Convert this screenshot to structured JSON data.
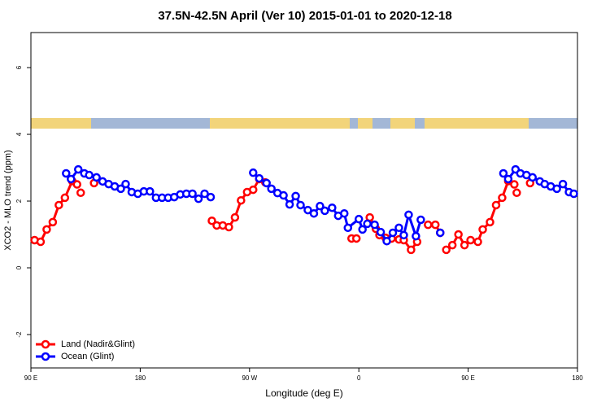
{
  "chart_data": {
    "type": "line",
    "title": "37.5N-42.5N April (Ver 10)   2015-01-01 to 2020-12-18",
    "x_label": "Longitude (deg E)",
    "y_label": "XCO2 - MLO trend (ppm)",
    "xlim": [
      90,
      540
    ],
    "ylim": [
      -3,
      7.05
    ],
    "xticks": [
      {
        "value": 90,
        "label": "90 E"
      },
      180,
      {
        "value": 270,
        "label": "90 W"
      },
      {
        "value": 360,
        "label": "0"
      },
      {
        "value": 450,
        "label": "90 E"
      },
      {
        "value": 540,
        "label": "180"
      }
    ],
    "yticks": [
      -2,
      0,
      2,
      4,
      6
    ],
    "grid": false,
    "legend": "bottom-left",
    "series": [
      {
        "name": "Land (Nadir&Glint)",
        "color": "#ff0000",
        "x": [
          93,
          98,
          103,
          108,
          113,
          118,
          124,
          128,
          null,
          131,
          null,
          142,
          null,
          239,
          243,
          248,
          253,
          258,
          263,
          268,
          273,
          278,
          283,
          null,
          354,
          358,
          null,
          369,
          374,
          377,
          382,
          387,
          393,
          397,
          403,
          408,
          null,
          417,
          423,
          427,
          null,
          432,
          437,
          442,
          447,
          452,
          458,
          462,
          468,
          473,
          478,
          483,
          488,
          null,
          490,
          null,
          501
        ],
        "values": [
          0.83,
          0.78,
          1.15,
          1.37,
          1.88,
          2.1,
          2.6,
          2.5,
          null,
          2.25,
          null,
          2.54,
          null,
          1.41,
          1.27,
          1.27,
          1.22,
          1.51,
          2.02,
          2.27,
          2.34,
          2.66,
          2.56,
          null,
          0.88,
          0.88,
          null,
          1.51,
          1.17,
          0.98,
          0.9,
          0.88,
          0.85,
          0.83,
          0.54,
          0.78,
          null,
          1.29,
          1.29,
          1.05,
          null,
          0.54,
          0.68,
          1.0,
          0.68,
          0.83,
          0.78,
          1.15,
          1.37,
          1.88,
          2.1,
          2.6,
          2.5,
          null,
          2.25,
          null,
          2.54
        ]
      },
      {
        "name": "Ocean (Glint)",
        "color": "#0000ff",
        "x": [
          119,
          123,
          129,
          134,
          138,
          144,
          149,
          154,
          159,
          164,
          168,
          173,
          178,
          183,
          188,
          193,
          198,
          203,
          208,
          213,
          218,
          223,
          228,
          233,
          238,
          null,
          273,
          278,
          284,
          288,
          293,
          298,
          303,
          308,
          312,
          318,
          323,
          328,
          332,
          338,
          343,
          348,
          351,
          360,
          363,
          367,
          373,
          378,
          383,
          388,
          393,
          397,
          401,
          407,
          411,
          null,
          427,
          null,
          479,
          483,
          489,
          493,
          498,
          503,
          509,
          513,
          518,
          523,
          528,
          533,
          537
        ],
        "values": [
          2.83,
          2.66,
          2.95,
          2.83,
          2.78,
          2.71,
          2.59,
          2.51,
          2.44,
          2.37,
          2.51,
          2.27,
          2.22,
          2.29,
          2.29,
          2.1,
          2.1,
          2.1,
          2.12,
          2.2,
          2.22,
          2.22,
          2.07,
          2.22,
          2.12,
          null,
          2.85,
          2.68,
          2.54,
          2.37,
          2.24,
          2.17,
          1.9,
          2.15,
          1.88,
          1.73,
          1.63,
          1.85,
          1.71,
          1.8,
          1.56,
          1.63,
          1.2,
          1.46,
          1.15,
          1.32,
          1.29,
          1.07,
          0.8,
          1.05,
          1.2,
          0.98,
          1.59,
          0.95,
          1.44,
          null,
          1.05,
          null,
          2.83,
          2.66,
          2.95,
          2.83,
          2.78,
          2.71,
          2.59,
          2.51,
          2.44,
          2.37,
          2.51,
          2.27,
          2.22
        ]
      }
    ]
  }
}
